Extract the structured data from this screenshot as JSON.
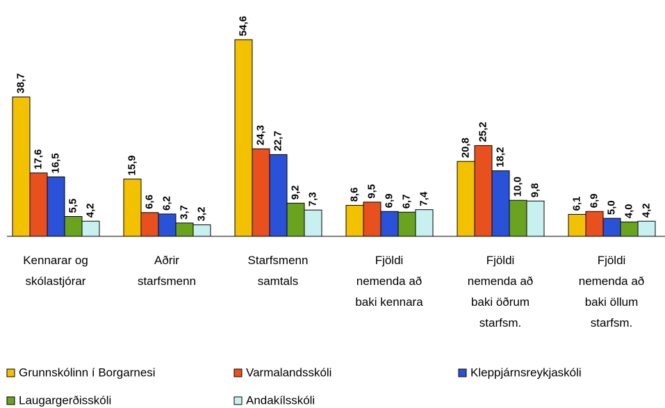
{
  "chart_data": {
    "type": "bar",
    "categories": [
      "Kennarar og\nskólastjórar",
      "Aðrir\nstarfsmenn",
      "Starfsmenn\nsamtals",
      "Fjöldi\nnemenda að\nbaki kennara",
      "Fjöldi\nnemenda að\nbaki öðrum\nstarfsm.",
      "Fjöldi\nnemenda að\nbaki öllum\nstarfsm."
    ],
    "series": [
      {
        "name": "Grunnskólinn í Borgarnesi",
        "color": "#f2c200",
        "values": [
          38.7,
          15.9,
          54.6,
          8.6,
          20.8,
          6.1
        ],
        "value_labels": [
          "38,7",
          "15,9",
          "54,6",
          "8,6",
          "20,8",
          "6,1"
        ]
      },
      {
        "name": "Varmalandsskóli",
        "color": "#e8501e",
        "values": [
          17.6,
          6.6,
          24.3,
          9.5,
          25.2,
          6.9
        ],
        "value_labels": [
          "17,6",
          "6,6",
          "24,3",
          "9,5",
          "25,2",
          "6,9"
        ]
      },
      {
        "name": "Kleppjárnsreykjaskóli",
        "color": "#2a52d8",
        "values": [
          16.5,
          6.2,
          22.7,
          6.9,
          18.2,
          5.0
        ],
        "value_labels": [
          "16,5",
          "6,2",
          "22,7",
          "6,9",
          "18,2",
          "5,0"
        ]
      },
      {
        "name": "Laugargerðisskóli",
        "color": "#6aa31e",
        "values": [
          5.5,
          3.7,
          9.2,
          6.7,
          10.0,
          4.0
        ],
        "value_labels": [
          "5,5",
          "3,7",
          "9,2",
          "6,7",
          "10,0",
          "4,0"
        ]
      },
      {
        "name": "Andakílsskóli",
        "color": "#c8f0f0",
        "values": [
          4.2,
          3.2,
          7.3,
          7.4,
          9.8,
          4.2
        ],
        "value_labels": [
          "4,2",
          "3,2",
          "7,3",
          "7,4",
          "9,8",
          "4,2"
        ]
      }
    ],
    "ylim": [
      0,
      55
    ]
  }
}
